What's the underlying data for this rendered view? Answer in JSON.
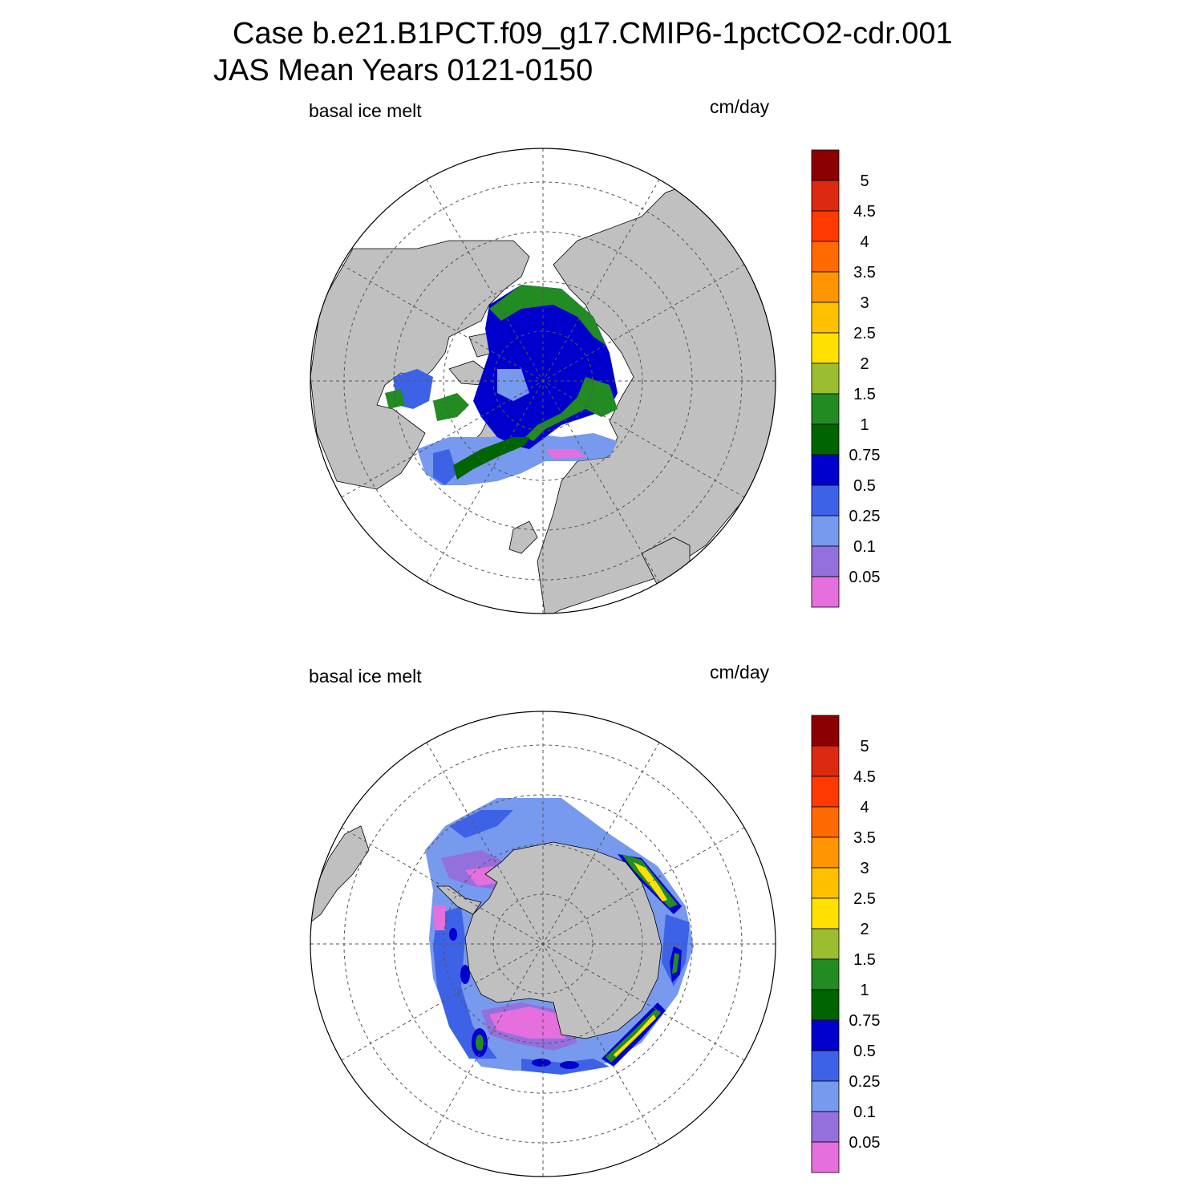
{
  "title": {
    "line1": "Case b.e21.B1PCT.f09_g17.CMIP6-1pctCO2-cdr.001",
    "line2": "JAS Mean   Years 0121-0150"
  },
  "colorbar": {
    "levels": [
      "5",
      "4.5",
      "4",
      "3.5",
      "3",
      "2.5",
      "2",
      "1.5",
      "1",
      "0.75",
      "0.5",
      "0.25",
      "0.1",
      "0.05"
    ],
    "colors": [
      "#8b0000",
      "#dc2a10",
      "#ff3a00",
      "#ff6a00",
      "#ff9500",
      "#ffc000",
      "#ffe000",
      "#9abe30",
      "#228b22",
      "#006400",
      "#0000cd",
      "#3d62e6",
      "#7799ee",
      "#9370db",
      "#e46fdd"
    ]
  },
  "panels": [
    {
      "hemisphere": "north",
      "left_label": "basal ice melt",
      "right_label": "cm/day"
    },
    {
      "hemisphere": "south",
      "left_label": "basal ice melt",
      "right_label": "cm/day"
    }
  ],
  "style": {
    "land": "#c0c0c0",
    "ocean": "#ffffff"
  }
}
